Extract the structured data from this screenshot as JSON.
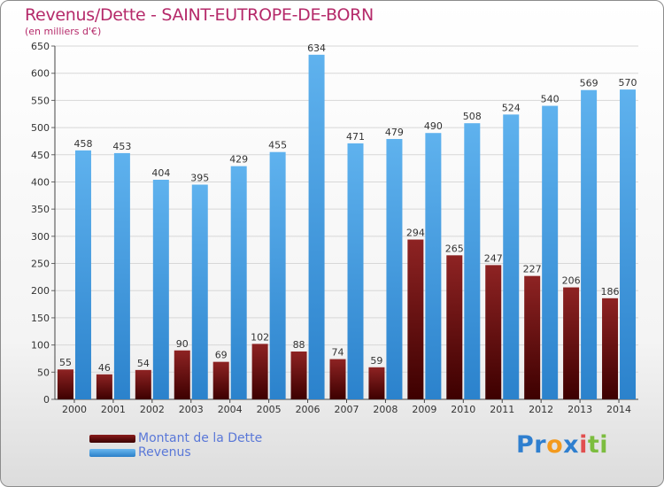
{
  "chart_data": {
    "type": "bar",
    "title": "Revenus/Dette - SAINT-EUTROPE-DE-BORN",
    "subtitle": "(en milliers d'€)",
    "categories": [
      "2000",
      "2001",
      "2002",
      "2003",
      "2004",
      "2005",
      "2006",
      "2007",
      "2008",
      "2009",
      "2010",
      "2011",
      "2012",
      "2013",
      "2014"
    ],
    "series": [
      {
        "name": "Montant de la Dette",
        "values": [
          55,
          46,
          54,
          90,
          69,
          102,
          88,
          74,
          59,
          294,
          265,
          247,
          227,
          206,
          186
        ],
        "color": "#7a1414"
      },
      {
        "name": "Revenus",
        "values": [
          458,
          453,
          404,
          395,
          429,
          455,
          634,
          471,
          479,
          490,
          508,
          524,
          540,
          569,
          570
        ],
        "color": "#4aa3e8"
      }
    ],
    "ylim": [
      0,
      650
    ],
    "yticks": [
      0,
      50,
      100,
      150,
      200,
      250,
      300,
      350,
      400,
      450,
      500,
      550,
      600,
      650
    ],
    "grid": true,
    "legend": "bottom-left"
  },
  "logo": {
    "p1": "Pr",
    "p2": "o",
    "p3": "x",
    "p4": "i",
    "p5": "ti"
  }
}
